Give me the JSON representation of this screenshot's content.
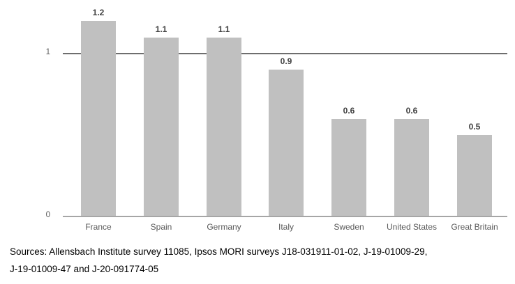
{
  "chart_data": {
    "type": "bar",
    "categories": [
      "France",
      "Spain",
      "Germany",
      "Italy",
      "Sweden",
      "United States",
      "Great Britain"
    ],
    "values": [
      1.2,
      1.1,
      1.1,
      0.9,
      0.6,
      0.6,
      0.5
    ],
    "value_labels": [
      "1.2",
      "1.1",
      "1.1",
      "0.9",
      "0.6",
      "0.6",
      "0.5"
    ],
    "title": "",
    "xlabel": "",
    "ylabel": "",
    "ylim": [
      0,
      1.3
    ],
    "yticks": [
      0,
      1
    ],
    "ytick_labels": [
      "0",
      "1"
    ],
    "reference_line": 1,
    "grid": false,
    "legend": "none",
    "bar_color": "#c0c0c0",
    "reference_line_color": "#6e6e6e",
    "baseline_color": "#a6a6a6",
    "value_label_color": "#3f3f3f",
    "axis_label_color": "#595959"
  },
  "footer": {
    "sources_line1": "Sources: Allensbach Institute survey 11085, Ipsos MORI surveys J18-031911-01-02, J-19-01009-29,",
    "sources_line2": "J-19-01009-47 and J-20-091774-05"
  }
}
